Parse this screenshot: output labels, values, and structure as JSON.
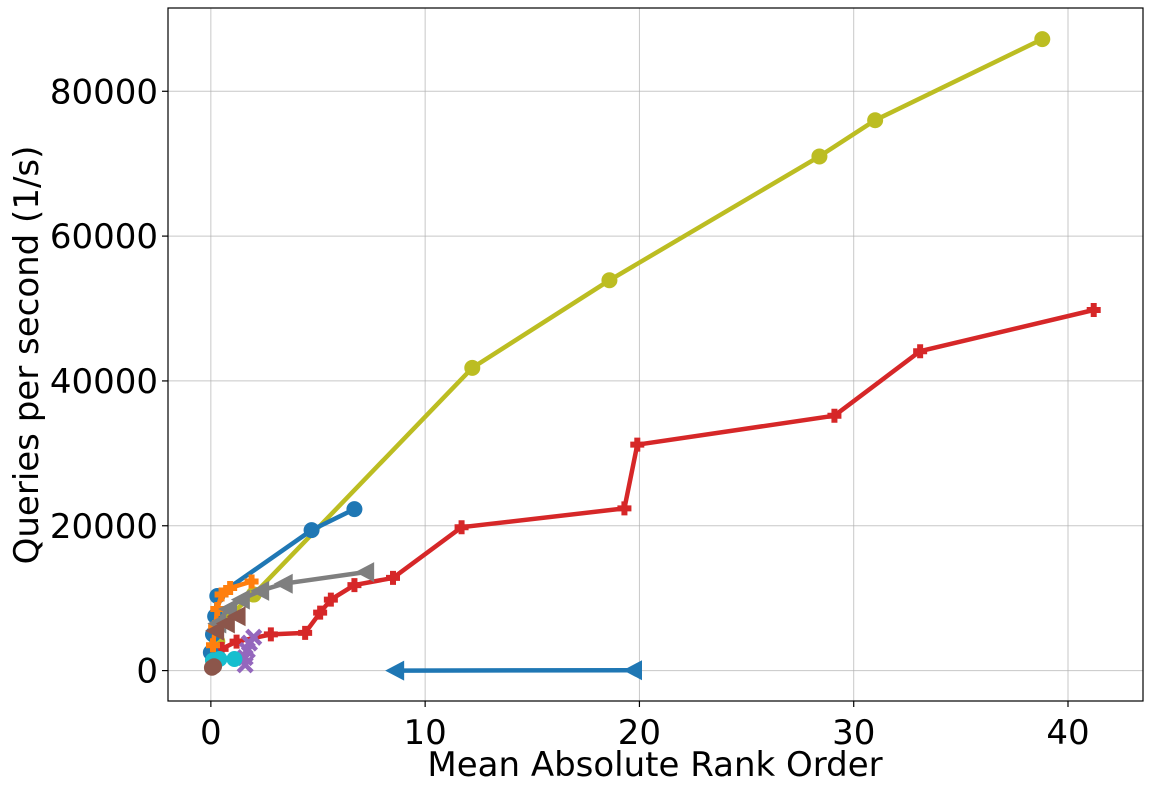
{
  "chart_data": {
    "type": "line",
    "title": "",
    "xlabel": "Mean Absolute Rank Order",
    "ylabel": "Queries per second (1/s)",
    "xlim": [
      -2,
      43.5
    ],
    "ylim": [
      -4200,
      91500
    ],
    "xticks": [
      0,
      10,
      20,
      30,
      40
    ],
    "yticks": [
      0,
      20000,
      40000,
      60000,
      80000
    ],
    "grid": true,
    "series": [
      {
        "color": "#bcbd22",
        "marker": "circle",
        "points": [
          [
            0.1,
            1500
          ],
          [
            0.3,
            4000
          ],
          [
            0.8,
            7500
          ],
          [
            2.0,
            10500
          ],
          [
            12.2,
            41800
          ],
          [
            18.6,
            53900
          ],
          [
            28.4,
            71000
          ],
          [
            31.0,
            76000
          ],
          [
            38.8,
            87200
          ]
        ]
      },
      {
        "color": "#d62728",
        "marker": "plus",
        "points": [
          [
            0.1,
            2000
          ],
          [
            0.5,
            3000
          ],
          [
            1.2,
            4000
          ],
          [
            2.8,
            5000
          ],
          [
            4.4,
            5200
          ],
          [
            5.1,
            8000
          ],
          [
            5.6,
            9800
          ],
          [
            6.7,
            11800
          ],
          [
            8.5,
            12800
          ],
          [
            11.7,
            19800
          ],
          [
            19.3,
            22400
          ],
          [
            19.9,
            31200
          ],
          [
            29.1,
            35200
          ],
          [
            33.1,
            44100
          ],
          [
            41.2,
            49800
          ]
        ]
      },
      {
        "color": "#1f77b4",
        "marker": "circle",
        "points": [
          [
            0.0,
            2500
          ],
          [
            0.1,
            5000
          ],
          [
            0.2,
            7500
          ],
          [
            0.3,
            10300
          ],
          [
            4.7,
            19400
          ],
          [
            6.7,
            22300
          ]
        ]
      },
      {
        "color": "#ff7f0e",
        "marker": "plus",
        "points": [
          [
            0.1,
            3500
          ],
          [
            0.2,
            6000
          ],
          [
            0.3,
            8500
          ],
          [
            0.5,
            10500
          ],
          [
            0.9,
            11400
          ],
          [
            1.9,
            12300
          ]
        ]
      },
      {
        "color": "#7f7f7f",
        "marker": "triangle-left",
        "points": [
          [
            0.3,
            6500
          ],
          [
            0.8,
            8500
          ],
          [
            1.4,
            9800
          ],
          [
            2.3,
            11000
          ],
          [
            3.4,
            12000
          ],
          [
            7.2,
            13600
          ]
        ]
      },
      {
        "color": "#8c564b",
        "marker": "triangle-left",
        "points": [
          [
            0.2,
            5500
          ],
          [
            0.7,
            6500
          ],
          [
            1.2,
            7500
          ]
        ]
      },
      {
        "color": "#1f77b4",
        "marker": "triangle-left",
        "points": [
          [
            8.6,
            0
          ],
          [
            19.7,
            50
          ]
        ]
      },
      {
        "color": "#9467bd",
        "marker": "x",
        "points": [
          [
            1.6,
            800
          ],
          [
            1.6,
            1800
          ],
          [
            1.7,
            2800
          ],
          [
            1.8,
            3800
          ],
          [
            2.0,
            4600
          ]
        ]
      },
      {
        "color": "#17becf",
        "marker": "circle",
        "points": [
          [
            0.1,
            1400
          ],
          [
            0.4,
            1600
          ],
          [
            1.1,
            1600
          ]
        ]
      },
      {
        "color": "#8c564b",
        "marker": "circle",
        "points": [
          [
            0.05,
            400
          ],
          [
            0.15,
            600
          ]
        ]
      }
    ]
  }
}
